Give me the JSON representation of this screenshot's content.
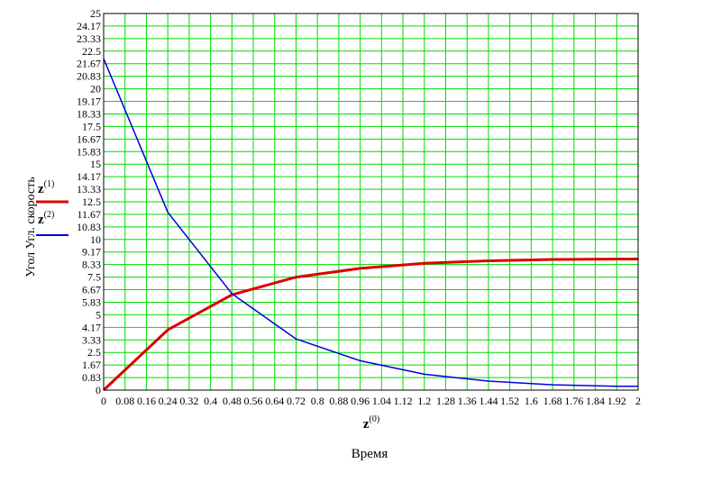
{
  "chart_data": {
    "type": "line",
    "xlim": [
      0,
      2
    ],
    "ylim": [
      0,
      25
    ],
    "grid": true,
    "legend_position": "left",
    "grid_color": "#00dd00",
    "frame_color": "#000000",
    "x_ticks": [
      "0",
      "0.08",
      "0.16",
      "0.24",
      "0.32",
      "0.4",
      "0.48",
      "0.56",
      "0.64",
      "0.72",
      "0.8",
      "0.88",
      "0.96",
      "1.04",
      "1.12",
      "1.2",
      "1.28",
      "1.36",
      "1.44",
      "1.52",
      "1.6",
      "1.68",
      "1.76",
      "1.84",
      "1.92",
      "2"
    ],
    "x_ticks_display": [
      "0",
      "0.08",
      "0.16",
      "0.24",
      "0.32",
      "0.4",
      "0.48",
      "0.56",
      "0.64",
      "0.72",
      "0.8",
      "0.88",
      "0.96",
      "1.04",
      "1.12",
      "1.2",
      "1.28",
      "1.36",
      "1.44",
      "1.52",
      "1.6",
      "1.68",
      "1.76",
      "1.84",
      "1.92",
      "2"
    ],
    "y_ticks": [
      "0",
      "0.83",
      "1.67",
      "2.5",
      "3.33",
      "4.17",
      "5",
      "5.83",
      "6.67",
      "7.5",
      "8.33",
      "9.17",
      "10",
      "10.83",
      "11.67",
      "12.5",
      "13.33",
      "14.17",
      "15",
      "15.83",
      "16.67",
      "17.5",
      "18.33",
      "19.17",
      "20",
      "20.83",
      "21.67",
      "22.5",
      "23.33",
      "24.17",
      "25"
    ],
    "ylabel": "Угол     Угл. скорость",
    "xlabel_main": "z",
    "xlabel_sup": "(0)",
    "bottom_label": "Время",
    "series": [
      {
        "name": "z",
        "sup": "(1)",
        "color": "#dd0000",
        "x": [
          0,
          0.24,
          0.48,
          0.72,
          0.96,
          1.2,
          1.44,
          1.68,
          1.92,
          2
        ],
        "y": [
          0,
          4.0,
          6.33,
          7.5,
          8.08,
          8.42,
          8.58,
          8.67,
          8.7,
          8.7
        ]
      },
      {
        "name": "z",
        "sup": "(2)",
        "color": "#0000dd",
        "x": [
          0,
          0.24,
          0.48,
          0.72,
          0.96,
          1.2,
          1.44,
          1.68,
          1.92,
          2
        ],
        "y": [
          22.0,
          11.8,
          6.4,
          3.4,
          1.95,
          1.05,
          0.6,
          0.35,
          0.25,
          0.25
        ]
      }
    ]
  }
}
